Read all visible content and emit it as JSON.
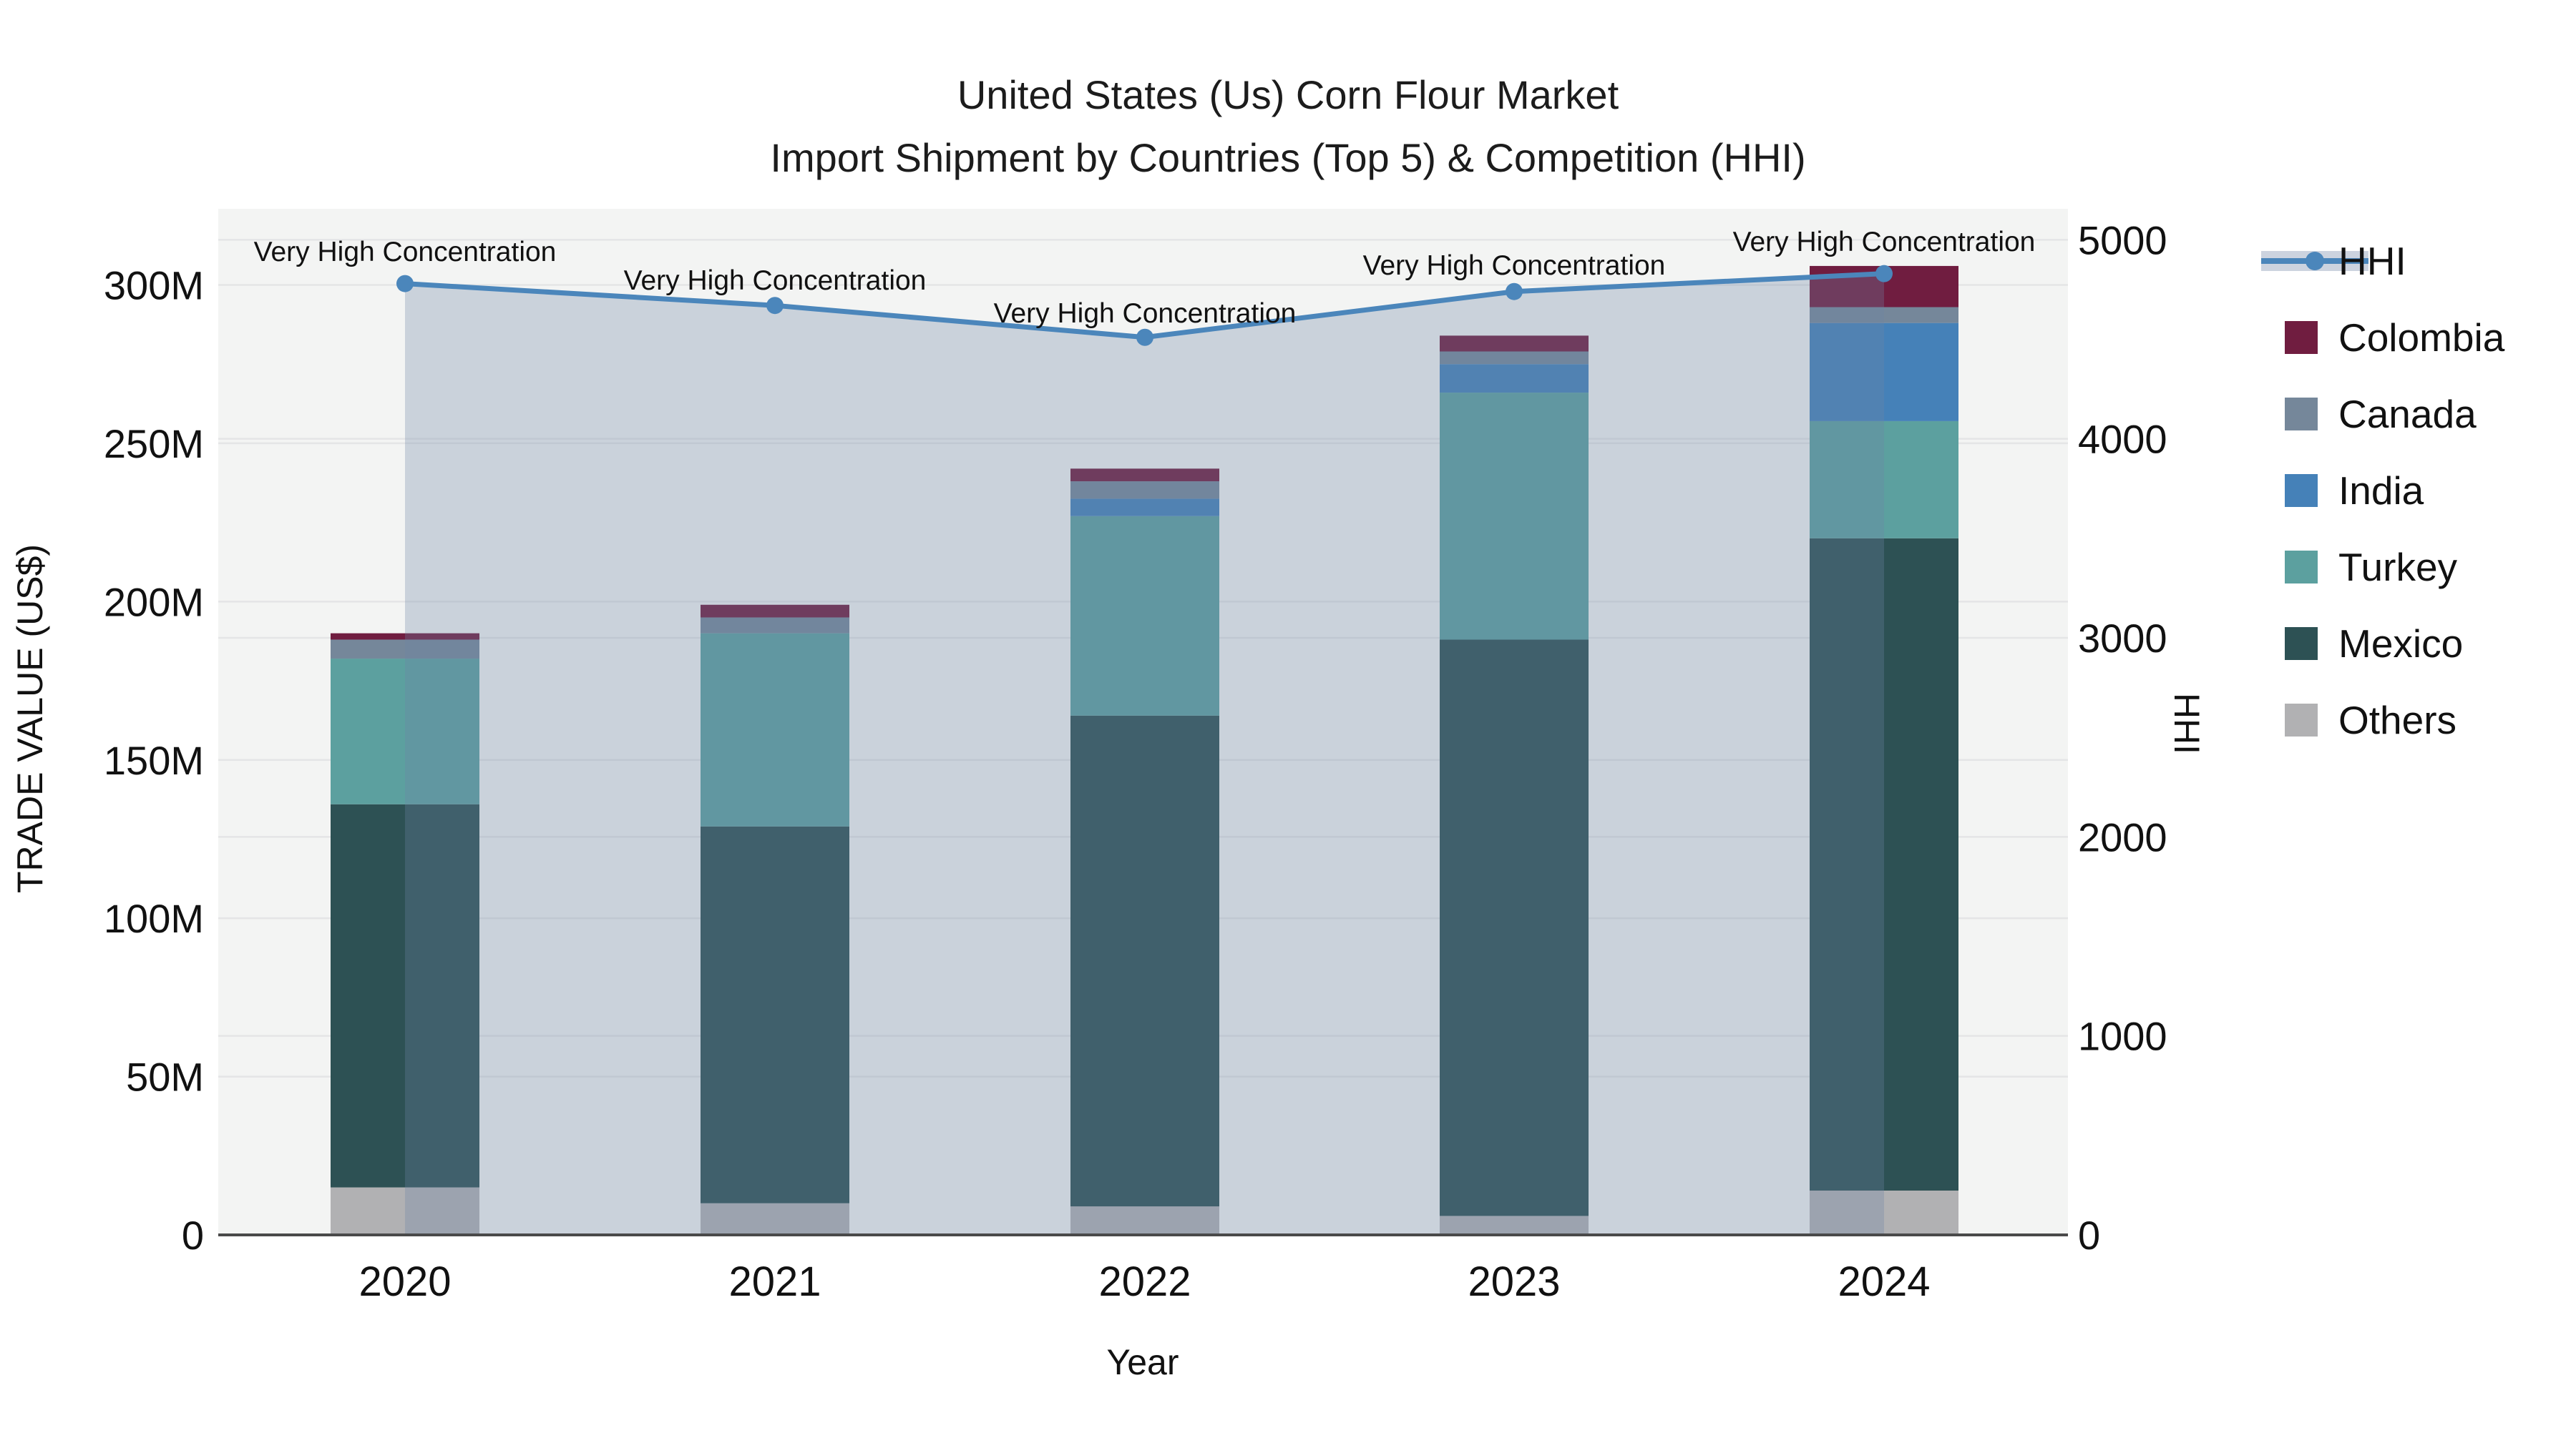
{
  "title": {
    "line1": "United States (Us) Corn Flour Market",
    "line2": "Import Shipment by Countries (Top 5) & Competition (HHI)"
  },
  "colors": {
    "plot_bg": "#f3f4f3",
    "gridline": "#e4e5e6",
    "axis_line": "#4a4a4a",
    "hhi_line": "#4b86bb",
    "hhi_area_fill": "rgba(108,134,164,0.30)",
    "legend_hhi_band": "#ccd3df",
    "colombia": "#701d40",
    "canada": "#75879a",
    "india": "#4581b8",
    "turkey": "#5ca09f",
    "mexico": "#2d5154",
    "others": "#b1b1b3"
  },
  "legend": {
    "items": [
      {
        "id": "hhi",
        "label": "HHI",
        "type": "line"
      },
      {
        "id": "colombia",
        "label": "Colombia",
        "type": "swatch"
      },
      {
        "id": "canada",
        "label": "Canada",
        "type": "swatch"
      },
      {
        "id": "india",
        "label": "India",
        "type": "swatch"
      },
      {
        "id": "turkey",
        "label": "Turkey",
        "type": "swatch"
      },
      {
        "id": "mexico",
        "label": "Mexico",
        "type": "swatch"
      },
      {
        "id": "others",
        "label": "Others",
        "type": "swatch"
      }
    ]
  },
  "chart_data": {
    "type": "combo_stacked_bar_line",
    "title": "United States (Us) Corn Flour Market — Import Shipment by Countries (Top 5) & Competition (HHI)",
    "categories": [
      "2020",
      "2021",
      "2022",
      "2023",
      "2024"
    ],
    "bar_value_unit": "million US$",
    "bar_series_bottom_to_top": [
      {
        "name": "Others",
        "color_key": "others",
        "values": [
          15,
          10,
          9,
          6,
          14
        ]
      },
      {
        "name": "Mexico",
        "color_key": "mexico",
        "values": [
          121,
          119,
          155,
          182,
          206
        ]
      },
      {
        "name": "Turkey",
        "color_key": "turkey",
        "values": [
          46,
          61,
          63,
          78,
          37
        ]
      },
      {
        "name": "India",
        "color_key": "india",
        "values": [
          0,
          0,
          5.5,
          9,
          31
        ]
      },
      {
        "name": "Canada",
        "color_key": "canada",
        "values": [
          6,
          5,
          5.5,
          4,
          5
        ]
      },
      {
        "name": "Colombia",
        "color_key": "colombia",
        "values": [
          2,
          4,
          4,
          5,
          13
        ]
      }
    ],
    "bar_totals": [
      190,
      199,
      242,
      284,
      306
    ],
    "line_series": {
      "name": "HHI",
      "axis": "right",
      "values": [
        4780,
        4670,
        4510,
        4740,
        4830
      ],
      "area_fill": true
    },
    "annotations": [
      {
        "text": "Very High Concentration",
        "category": "2020"
      },
      {
        "text": "Very High Concentration",
        "category": "2021"
      },
      {
        "text": "Very High Concentration",
        "category": "2022"
      },
      {
        "text": "Very High Concentration",
        "category": "2023"
      },
      {
        "text": "Very High Concentration",
        "category": "2024"
      }
    ],
    "left_axis": {
      "title": "TRADE VALUE (US$)",
      "tick_labels": [
        "0",
        "50M",
        "100M",
        "150M",
        "200M",
        "250M",
        "300M"
      ],
      "tick_values": [
        0,
        50,
        100,
        150,
        200,
        250,
        300
      ],
      "range": [
        0,
        324
      ],
      "grid": true
    },
    "right_axis": {
      "title": "HHI",
      "tick_labels": [
        "0",
        "1000",
        "2000",
        "3000",
        "4000",
        "5000"
      ],
      "tick_values": [
        0,
        1000,
        2000,
        3000,
        4000,
        5000
      ],
      "range": [
        0,
        5156
      ],
      "grid": true
    },
    "x_axis": {
      "title": "Year",
      "tick_labels": [
        "2020",
        "2021",
        "2022",
        "2023",
        "2024"
      ]
    },
    "legend_position": "right"
  }
}
